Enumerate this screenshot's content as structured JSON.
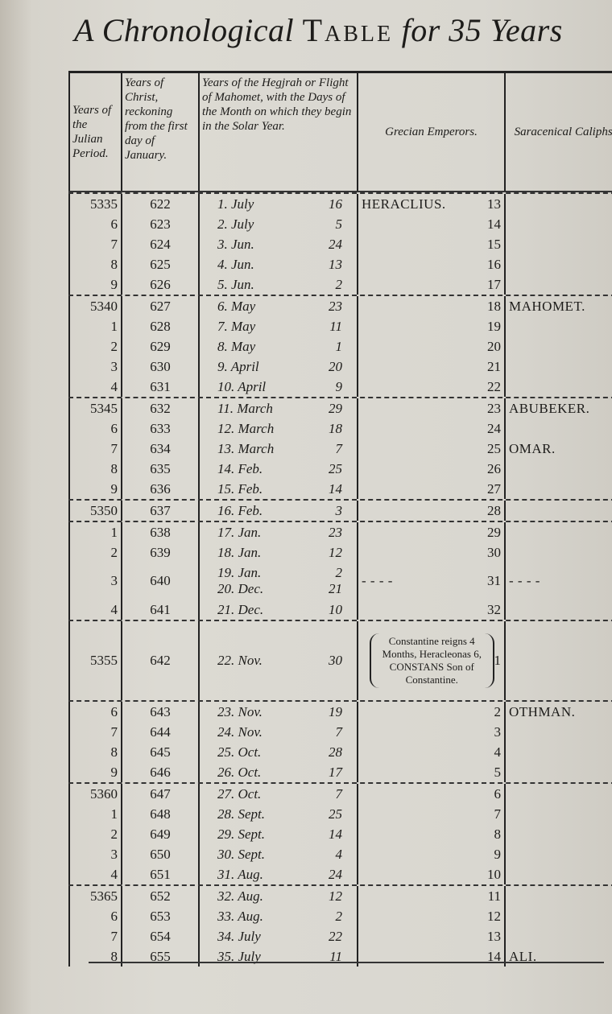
{
  "title": {
    "pre": "A Chronological",
    "caps": "Table",
    "post": "for 35 Years"
  },
  "headers": {
    "julian": "Years of the Julian Period.",
    "christ": "Years of Christ, reckoning from the first day of January.",
    "hegira": "Years of the Hegjrah or Flight of Mahomet, with the Days of the Month on which they begin in the Solar Year.",
    "grecian": "Grecian Emperors.",
    "caliphs": "Saracenical Caliphs."
  },
  "rows": [
    {
      "julian": "5335",
      "christ": "622",
      "hegira": [
        [
          "1. July",
          "16"
        ]
      ],
      "emp_name": "HERACLIUS.",
      "emp": "13",
      "caliph": "",
      "sep": true
    },
    {
      "julian": "6",
      "christ": "623",
      "hegira": [
        [
          "2. July",
          "5"
        ]
      ],
      "emp": "14",
      "caliph": ""
    },
    {
      "julian": "7",
      "christ": "624",
      "hegira": [
        [
          "3. Jun.",
          "24"
        ]
      ],
      "emp": "15",
      "caliph": ""
    },
    {
      "julian": "8",
      "christ": "625",
      "hegira": [
        [
          "4. Jun.",
          "13"
        ]
      ],
      "emp": "16",
      "caliph": ""
    },
    {
      "julian": "9",
      "christ": "626",
      "hegira": [
        [
          "5. Jun.",
          "2"
        ]
      ],
      "emp": "17",
      "caliph": ""
    },
    {
      "julian": "5340",
      "christ": "627",
      "hegira": [
        [
          "6. May",
          "23"
        ]
      ],
      "emp": "18",
      "caliph": "MAHOMET.",
      "sep": true
    },
    {
      "julian": "1",
      "christ": "628",
      "hegira": [
        [
          "7. May",
          "11"
        ]
      ],
      "emp": "19",
      "caliph": ""
    },
    {
      "julian": "2",
      "christ": "629",
      "hegira": [
        [
          "8. May",
          "1"
        ]
      ],
      "emp": "20",
      "caliph": ""
    },
    {
      "julian": "3",
      "christ": "630",
      "hegira": [
        [
          "9. April",
          "20"
        ]
      ],
      "emp": "21",
      "caliph": ""
    },
    {
      "julian": "4",
      "christ": "631",
      "hegira": [
        [
          "10. April",
          "9"
        ]
      ],
      "emp": "22",
      "caliph": ""
    },
    {
      "julian": "5345",
      "christ": "632",
      "hegira": [
        [
          "11. March",
          "29"
        ]
      ],
      "emp": "23",
      "caliph": "ABUBEKER.",
      "sep": true
    },
    {
      "julian": "6",
      "christ": "633",
      "hegira": [
        [
          "12. March",
          "18"
        ]
      ],
      "emp": "24",
      "caliph": ""
    },
    {
      "julian": "7",
      "christ": "634",
      "hegira": [
        [
          "13. March",
          "7"
        ]
      ],
      "emp": "25",
      "caliph": "OMAR."
    },
    {
      "julian": "8",
      "christ": "635",
      "hegira": [
        [
          "14. Feb.",
          "25"
        ]
      ],
      "emp": "26",
      "caliph": ""
    },
    {
      "julian": "9",
      "christ": "636",
      "hegira": [
        [
          "15. Feb.",
          "14"
        ]
      ],
      "emp": "27",
      "caliph": ""
    },
    {
      "julian": "5350",
      "christ": "637",
      "hegira": [
        [
          "16. Feb.",
          "3"
        ]
      ],
      "emp": "28",
      "caliph": "",
      "sep": true
    },
    {
      "julian": "1",
      "christ": "638",
      "hegira": [
        [
          "17. Jan.",
          "23"
        ]
      ],
      "emp": "29",
      "caliph": "",
      "sep": true
    },
    {
      "julian": "2",
      "christ": "639",
      "hegira": [
        [
          "18. Jan.",
          "12"
        ]
      ],
      "emp": "30",
      "caliph": ""
    },
    {
      "julian": "3",
      "christ": "640",
      "hegira": [
        [
          "19. Jan.",
          "2"
        ],
        [
          "20. Dec.",
          "21"
        ]
      ],
      "emp_name": "- - - -",
      "emp": "31",
      "caliph": "- - - -",
      "double": true
    },
    {
      "julian": "4",
      "christ": "641",
      "hegira": [
        [
          "21. Dec.",
          "10"
        ]
      ],
      "emp": "32",
      "caliph": ""
    },
    {
      "julian": "5355",
      "christ": "642",
      "hegira": [
        [
          "22. Nov.",
          "30"
        ]
      ],
      "note": "Constantine reigns 4 Months, Heracleonas 6, CONSTANS Son of Constantine.",
      "emp": "1",
      "caliph": "",
      "sep": true,
      "tall": true
    },
    {
      "julian": "6",
      "christ": "643",
      "hegira": [
        [
          "23. Nov.",
          "19"
        ]
      ],
      "emp": "2",
      "caliph": "OTHMAN.",
      "sep": true
    },
    {
      "julian": "7",
      "christ": "644",
      "hegira": [
        [
          "24. Nov.",
          "7"
        ]
      ],
      "emp": "3",
      "caliph": ""
    },
    {
      "julian": "8",
      "christ": "645",
      "hegira": [
        [
          "25. Oct.",
          "28"
        ]
      ],
      "emp": "4",
      "caliph": ""
    },
    {
      "julian": "9",
      "christ": "646",
      "hegira": [
        [
          "26. Oct.",
          "17"
        ]
      ],
      "emp": "5",
      "caliph": ""
    },
    {
      "julian": "5360",
      "christ": "647",
      "hegira": [
        [
          "27. Oct.",
          "7"
        ]
      ],
      "emp": "6",
      "caliph": "",
      "sep": true
    },
    {
      "julian": "1",
      "christ": "648",
      "hegira": [
        [
          "28. Sept.",
          "25"
        ]
      ],
      "emp": "7",
      "caliph": ""
    },
    {
      "julian": "2",
      "christ": "649",
      "hegira": [
        [
          "29. Sept.",
          "14"
        ]
      ],
      "emp": "8",
      "caliph": ""
    },
    {
      "julian": "3",
      "christ": "650",
      "hegira": [
        [
          "30. Sept.",
          "4"
        ]
      ],
      "emp": "9",
      "caliph": ""
    },
    {
      "julian": "4",
      "christ": "651",
      "hegira": [
        [
          "31. Aug.",
          "24"
        ]
      ],
      "emp": "10",
      "caliph": ""
    },
    {
      "julian": "5365",
      "christ": "652",
      "hegira": [
        [
          "32. Aug.",
          "12"
        ]
      ],
      "emp": "11",
      "caliph": "",
      "sep": true
    },
    {
      "julian": "6",
      "christ": "653",
      "hegira": [
        [
          "33. Aug.",
          "2"
        ]
      ],
      "emp": "12",
      "caliph": ""
    },
    {
      "julian": "7",
      "christ": "654",
      "hegira": [
        [
          "34. July",
          "22"
        ]
      ],
      "emp": "13",
      "caliph": ""
    },
    {
      "julian": "8",
      "christ": "655",
      "hegira": [
        [
          "35. July",
          "11"
        ]
      ],
      "emp": "14",
      "caliph": "ALI."
    }
  ]
}
